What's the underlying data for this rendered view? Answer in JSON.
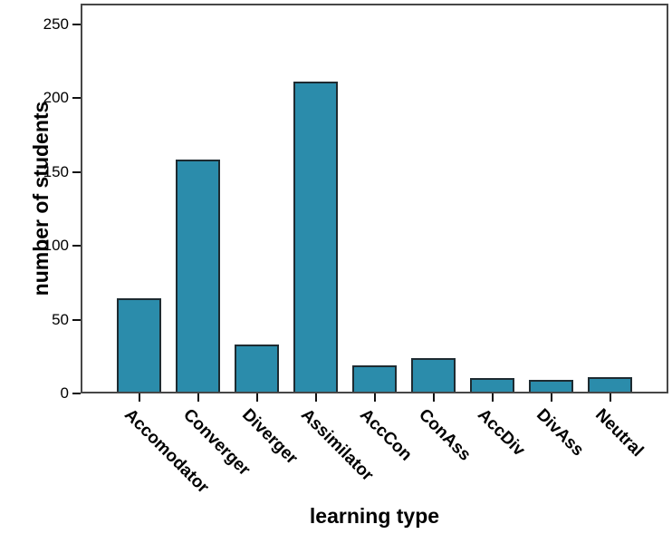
{
  "chart_data": {
    "type": "bar",
    "title": "",
    "xlabel": "learning type",
    "ylabel": "number of students",
    "categories": [
      "Accomodator",
      "Converger",
      "Diverger",
      "Assimilator",
      "AccCon",
      "ConAss",
      "AccDiv",
      "DivAss",
      "Neutral"
    ],
    "values": [
      63,
      157,
      32,
      210,
      18,
      23,
      9,
      8,
      10
    ],
    "yticks": [
      0,
      50,
      100,
      150,
      200,
      250
    ],
    "ylim": [
      0,
      264
    ],
    "grid": false,
    "legend_position": "none",
    "bar_fill_color": "#2b8cab",
    "bar_border_color": "#1e2b31",
    "frame_color": "#474747",
    "tick_color": "#111111",
    "text_color": "#000000"
  }
}
